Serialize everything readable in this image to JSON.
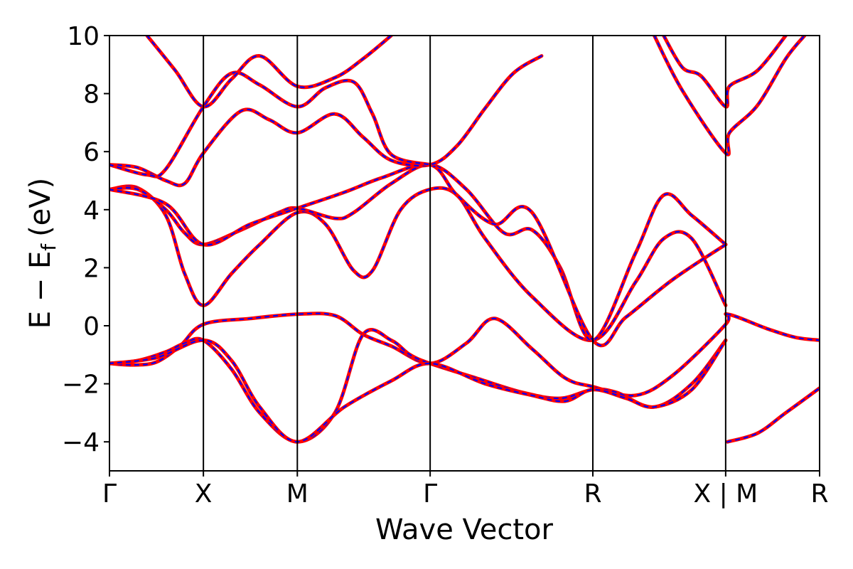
{
  "chart_data": {
    "type": "line",
    "title": "",
    "xlabel": "Wave Vector",
    "ylabel_main": "E − E",
    "ylabel_sub": "f",
    "ylabel_unit": "(eV)",
    "ylim": [
      -5,
      10
    ],
    "yticks": [
      -4,
      -2,
      0,
      2,
      4,
      6,
      8,
      10
    ],
    "ytick_labels": [
      "−4",
      "−2",
      "0",
      "2",
      "4",
      "6",
      "8",
      "10"
    ],
    "xlim": [
      0,
      10
    ],
    "kpoints": [
      {
        "label": "Γ",
        "x": 0
      },
      {
        "label": "X",
        "x": 1
      },
      {
        "label": "M",
        "x": 2
      },
      {
        "label": "Γ",
        "x": 3.414
      },
      {
        "label": "R",
        "x": 5.146
      },
      {
        "label": "X | M",
        "x": 6.56
      },
      {
        "label": "R",
        "x": 7.56
      }
    ],
    "colors": {
      "series_a": "#ff0000",
      "series_b": "#0000ff",
      "frame": "#000000"
    },
    "series_styles": [
      {
        "color": "#ff0000",
        "style": "solid"
      },
      {
        "color": "#0000ff",
        "style": "dotted"
      }
    ],
    "bands": [
      [
        [
          0,
          -1.3
        ],
        [
          0.25,
          -1.35
        ],
        [
          0.5,
          -1.25
        ],
        [
          0.75,
          -0.7
        ],
        [
          1,
          0.05
        ],
        [
          1.5,
          0.25
        ],
        [
          2,
          0.4
        ],
        [
          2.4,
          0.35
        ],
        [
          2.7,
          -0.3
        ],
        [
          3,
          -0.7
        ],
        [
          3.414,
          -1.3
        ],
        [
          3.8,
          -0.6
        ],
        [
          4.1,
          0.25
        ],
        [
          4.5,
          -0.8
        ],
        [
          4.85,
          -1.8
        ],
        [
          5.146,
          -2.1
        ],
        [
          5.6,
          -2.4
        ],
        [
          6,
          -1.7
        ],
        [
          6.56,
          0.05
        ],
        [
          6.58,
          0.4
        ],
        [
          7,
          -0.1
        ],
        [
          7.3,
          -0.4
        ],
        [
          7.56,
          -0.5
        ]
      ],
      [
        [
          0,
          -1.3
        ],
        [
          0.3,
          -1.2
        ],
        [
          0.6,
          -0.9
        ],
        [
          0.8,
          -0.6
        ],
        [
          1,
          -0.5
        ],
        [
          1.3,
          -1.5
        ],
        [
          1.6,
          -3
        ],
        [
          2,
          -4
        ],
        [
          2.4,
          -3
        ],
        [
          2.7,
          -0.3
        ],
        [
          3,
          -0.5
        ],
        [
          3.2,
          -1
        ],
        [
          3.414,
          -1.3
        ],
        [
          3.9,
          -1.8
        ],
        [
          4.4,
          -2.3
        ],
        [
          4.8,
          -2.5
        ],
        [
          5.146,
          -2.2
        ],
        [
          5.4,
          -2.3
        ],
        [
          5.8,
          -2.8
        ],
        [
          6.2,
          -2
        ],
        [
          6.56,
          -0.5
        ]
      ],
      [
        [
          0,
          -1.3
        ],
        [
          0.5,
          -1.1
        ],
        [
          1,
          -0.5
        ],
        [
          1.3,
          -1.2
        ],
        [
          1.6,
          -2.8
        ],
        [
          2,
          -4
        ],
        [
          2.5,
          -2.8
        ],
        [
          3,
          -1.9
        ],
        [
          3.414,
          -1.3
        ],
        [
          4,
          -2
        ],
        [
          4.5,
          -2.4
        ],
        [
          4.85,
          -2.6
        ],
        [
          5.146,
          -2.2
        ],
        [
          5.5,
          -2.5
        ],
        [
          5.8,
          -2.8
        ],
        [
          6.2,
          -2.2
        ],
        [
          6.56,
          -0.5
        ]
      ],
      [
        [
          6.58,
          -4
        ],
        [
          6.9,
          -3.7
        ],
        [
          7.2,
          -3
        ],
        [
          7.56,
          -2.15
        ]
      ],
      [
        [
          0,
          4.7
        ],
        [
          0.3,
          4.75
        ],
        [
          0.6,
          3.8
        ],
        [
          0.8,
          1.8
        ],
        [
          1,
          0.7
        ],
        [
          1.3,
          1.8
        ],
        [
          1.6,
          2.8
        ],
        [
          2,
          3.9
        ],
        [
          2.3,
          3.5
        ],
        [
          2.6,
          1.9
        ],
        [
          2.8,
          1.9
        ],
        [
          3.1,
          4
        ],
        [
          3.414,
          4.7
        ],
        [
          3.7,
          4.5
        ],
        [
          4,
          3
        ],
        [
          4.5,
          1
        ],
        [
          5.146,
          -0.5
        ],
        [
          5.6,
          1.5
        ],
        [
          5.9,
          3
        ],
        [
          6.2,
          3
        ],
        [
          6.56,
          0.7
        ]
      ],
      [
        [
          0,
          4.7
        ],
        [
          0.3,
          4.7
        ],
        [
          0.6,
          4
        ],
        [
          0.8,
          3.2
        ],
        [
          1,
          2.8
        ],
        [
          1.4,
          3.3
        ],
        [
          1.8,
          3.9
        ],
        [
          2,
          4.05
        ],
        [
          2.4,
          3.7
        ],
        [
          2.6,
          3.9
        ],
        [
          3,
          4.9
        ],
        [
          3.414,
          5.55
        ],
        [
          3.8,
          4.7
        ],
        [
          4.2,
          3.2
        ],
        [
          4.5,
          3.3
        ],
        [
          4.8,
          2
        ],
        [
          5.146,
          -0.5
        ],
        [
          5.6,
          2.5
        ],
        [
          5.9,
          4.5
        ],
        [
          6.2,
          3.8
        ],
        [
          6.56,
          2.8
        ]
      ],
      [
        [
          0,
          4.7
        ],
        [
          0.6,
          4.2
        ],
        [
          1,
          2.8
        ],
        [
          1.5,
          3.5
        ],
        [
          2,
          4.05
        ],
        [
          2.5,
          4.6
        ],
        [
          2.9,
          5.1
        ],
        [
          3.414,
          5.55
        ],
        [
          3.7,
          4.5
        ],
        [
          4.1,
          3.5
        ],
        [
          4.5,
          3.9
        ],
        [
          5.146,
          -0.5
        ],
        [
          5.5,
          0.3
        ],
        [
          6,
          1.6
        ],
        [
          6.56,
          2.8
        ]
      ],
      [
        [
          0,
          5.55
        ],
        [
          0.3,
          5.45
        ],
        [
          0.6,
          5
        ],
        [
          0.8,
          4.9
        ],
        [
          1,
          5.95
        ],
        [
          1.4,
          7.4
        ],
        [
          1.7,
          7.1
        ],
        [
          2,
          6.65
        ],
        [
          2.4,
          7.3
        ],
        [
          2.7,
          6.5
        ],
        [
          3,
          5.7
        ],
        [
          3.414,
          5.55
        ],
        [
          3.7,
          6.2
        ],
        [
          4,
          7.5
        ],
        [
          4.3,
          8.7
        ],
        [
          4.6,
          9.3
        ]
      ],
      [
        [
          0,
          5.55
        ],
        [
          0.4,
          5.2
        ],
        [
          0.6,
          5.4
        ],
        [
          1,
          7.55
        ],
        [
          1.3,
          8.7
        ],
        [
          1.6,
          8.3
        ],
        [
          2,
          7.55
        ],
        [
          2.3,
          8.2
        ],
        [
          2.6,
          8.4
        ],
        [
          2.8,
          7.3
        ],
        [
          3,
          5.9
        ],
        [
          3.414,
          5.55
        ]
      ],
      [
        [
          0.4,
          10
        ],
        [
          0.7,
          8.8
        ],
        [
          1,
          7.55
        ],
        [
          1.3,
          8.5
        ],
        [
          1.6,
          9.3
        ],
        [
          2,
          8.25
        ],
        [
          2.4,
          8.55
        ],
        [
          2.7,
          9.2
        ],
        [
          3,
          10
        ]
      ],
      [
        [
          5.8,
          10
        ],
        [
          6.1,
          8.1
        ],
        [
          6.56,
          5.95
        ],
        [
          6.6,
          6.65
        ],
        [
          6.9,
          7.6
        ],
        [
          7.2,
          9.2
        ],
        [
          7.4,
          10
        ]
      ],
      [
        [
          5.9,
          10
        ],
        [
          6.1,
          8.9
        ],
        [
          6.3,
          8.6
        ],
        [
          6.56,
          7.55
        ],
        [
          6.6,
          8.25
        ],
        [
          6.9,
          8.8
        ],
        [
          7.2,
          10
        ]
      ]
    ]
  }
}
